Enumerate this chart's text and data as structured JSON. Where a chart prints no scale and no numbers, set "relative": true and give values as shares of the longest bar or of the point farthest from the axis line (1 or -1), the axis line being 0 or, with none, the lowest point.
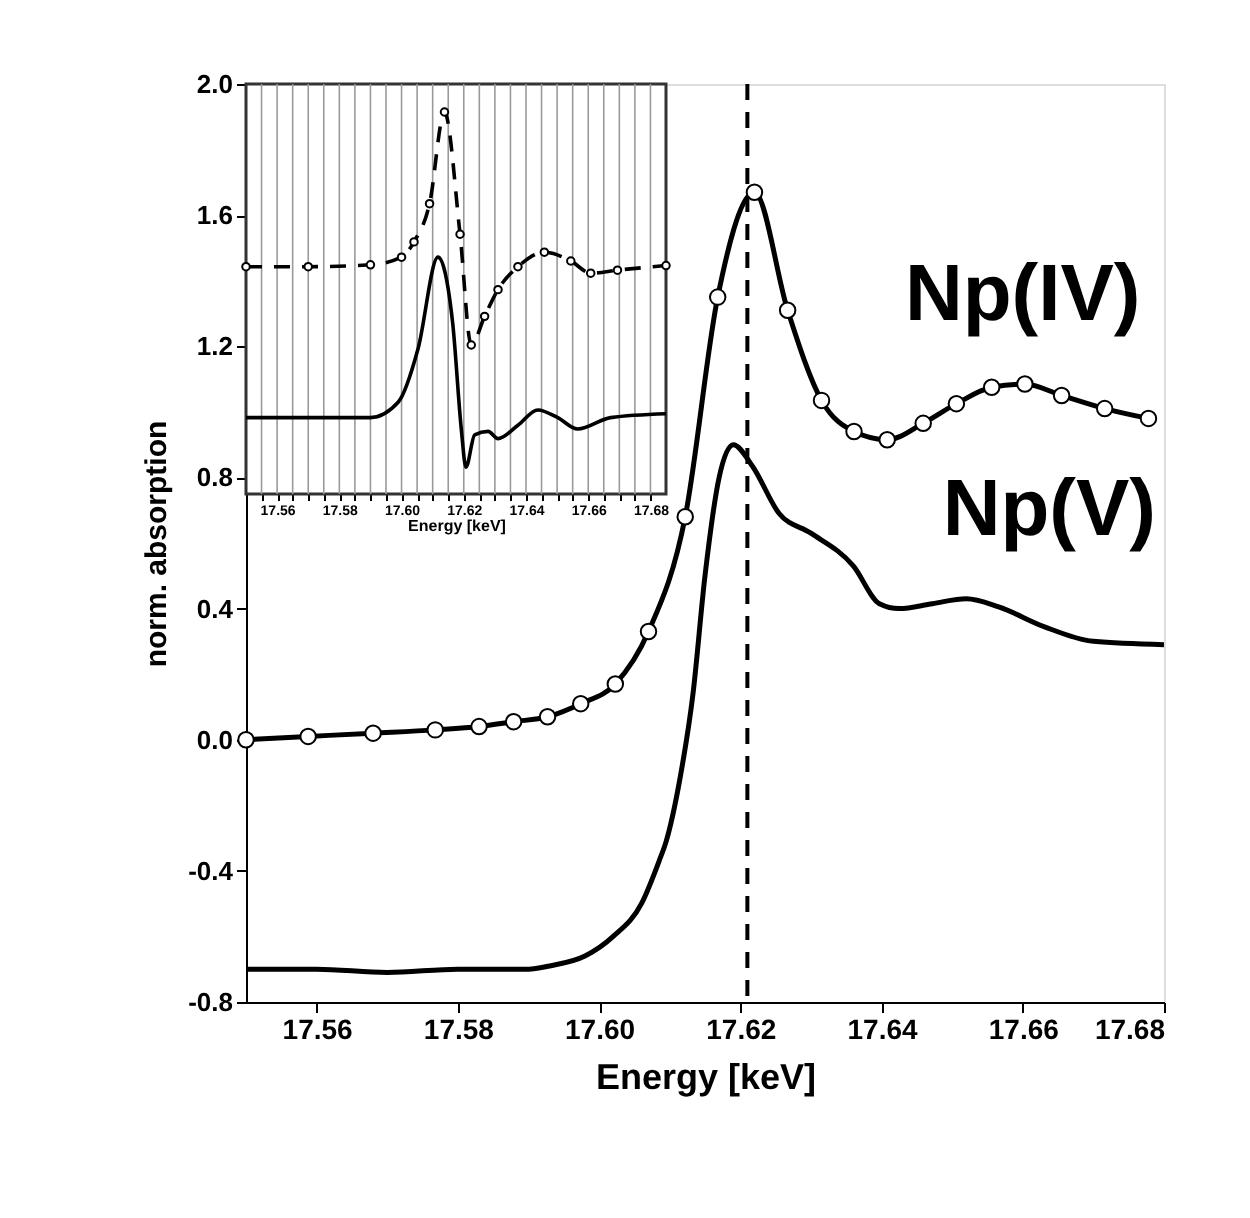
{
  "chart_data": [
    {
      "type": "line",
      "xlabel": "Energy [keV]",
      "ylabel": "norm. absorption",
      "xlim": [
        17.55,
        17.68
      ],
      "ylim": [
        -0.8,
        2.0
      ],
      "xticks": [
        17.56,
        17.58,
        {
          "value": 17.6,
          "label": "17.60"
        },
        17.62,
        17.64,
        17.66,
        17.68
      ],
      "yticks": [
        {
          "value": -0.8,
          "label": "-0.8"
        },
        {
          "value": -0.4,
          "label": "-0.4"
        },
        {
          "value": 0,
          "label": "0.0"
        },
        {
          "value": 0.4,
          "label": "0.4"
        },
        {
          "value": 0.8,
          "label": "0.8"
        },
        {
          "value": 1.2,
          "label": "1.2"
        },
        {
          "value": 1.6,
          "label": "1.6"
        },
        {
          "value": 2.0,
          "label": "2.0"
        }
      ],
      "grid": false,
      "series": [
        {
          "name": "Np(IV)",
          "color": "#000000",
          "marker": "circle",
          "line_style": "solid",
          "x": [
            17.55,
            17.5588,
            17.568,
            17.5768,
            17.583,
            17.5879,
            17.5927,
            17.5974,
            17.6023,
            17.607,
            17.6122,
            17.6168,
            17.622,
            17.6267,
            17.6315,
            17.6361,
            17.6408,
            17.6459,
            17.6506,
            17.6556,
            17.6603,
            17.6655,
            17.6716,
            17.6778
          ],
          "values": [
            0.0,
            0.01,
            0.02,
            0.03,
            0.04,
            0.055,
            0.07,
            0.11,
            0.17,
            0.33,
            0.68,
            1.35,
            1.67,
            1.31,
            1.035,
            0.94,
            0.915,
            0.965,
            1.025,
            1.075,
            1.085,
            1.05,
            1.01,
            0.98
          ]
        },
        {
          "name": "Np(V)",
          "color": "#000000",
          "marker": "none",
          "line_style": "solid",
          "x": [
            17.55,
            17.56,
            17.57,
            17.58,
            17.59,
            17.593,
            17.598,
            17.602,
            17.606,
            17.6085,
            17.6095,
            17.6114,
            17.6133,
            17.615,
            17.617,
            17.619,
            17.6217,
            17.6255,
            17.63,
            17.636,
            17.6397,
            17.6425,
            17.6472,
            17.652,
            17.6566,
            17.663,
            17.67,
            17.68
          ],
          "values": [
            -0.7,
            -0.7,
            -0.71,
            -0.7,
            -0.7,
            -0.69,
            -0.66,
            -0.6,
            -0.5,
            -0.37,
            -0.31,
            -0.125,
            0.14,
            0.5,
            0.8,
            0.9,
            0.835,
            0.69,
            0.63,
            0.53,
            0.415,
            0.4,
            0.415,
            0.43,
            0.405,
            0.345,
            0.3,
            0.29
          ]
        }
      ],
      "ref_lines": [
        {
          "axis": "x",
          "value": 17.621,
          "line_style": "dashed",
          "color": "#000000"
        }
      ]
    },
    {
      "type": "line",
      "relative": true,
      "xlabel": "Energy [keV]",
      "xlim": [
        17.55,
        17.685
      ],
      "xticks": [
        {
          "value": 17.555,
          "label": null
        },
        {
          "value": 17.56,
          "label": "17.56"
        },
        {
          "value": 17.565,
          "label": null
        },
        {
          "value": 17.57,
          "label": null
        },
        {
          "value": 17.575,
          "label": null
        },
        {
          "value": 17.58,
          "label": "17.58"
        },
        {
          "value": 17.585,
          "label": null
        },
        {
          "value": 17.59,
          "label": null
        },
        {
          "value": 17.595,
          "label": null
        },
        {
          "value": 17.6,
          "label": "17.60"
        },
        {
          "value": 17.605,
          "label": null
        },
        {
          "value": 17.61,
          "label": null
        },
        {
          "value": 17.615,
          "label": null
        },
        {
          "value": 17.62,
          "label": "17.62"
        },
        {
          "value": 17.625,
          "label": null
        },
        {
          "value": 17.63,
          "label": null
        },
        {
          "value": 17.635,
          "label": null
        },
        {
          "value": 17.64,
          "label": "17.64"
        },
        {
          "value": 17.645,
          "label": null
        },
        {
          "value": 17.65,
          "label": null
        },
        {
          "value": 17.655,
          "label": null
        },
        {
          "value": 17.66,
          "label": "17.66"
        },
        {
          "value": 17.665,
          "label": null
        },
        {
          "value": 17.67,
          "label": null
        },
        {
          "value": 17.675,
          "label": null
        },
        {
          "value": 17.68,
          "label": "17.68"
        }
      ],
      "grid": "x",
      "tick_labels": "x",
      "series": [
        {
          "color": "#000000",
          "marker": "circle",
          "line_style": "dashed",
          "x": [
            17.55,
            17.57,
            17.59,
            17.6,
            17.604,
            17.609,
            17.6138,
            17.6188,
            17.6224,
            17.6267,
            17.631,
            17.6374,
            17.6459,
            17.6544,
            17.6608,
            17.6694,
            17.685
          ],
          "values": [
            0.595,
            0.595,
            0.6,
            0.62,
            0.66,
            0.76,
            1.0,
            0.68,
            0.39,
            0.465,
            0.535,
            0.595,
            0.633,
            0.61,
            0.578,
            0.586,
            0.598
          ]
        },
        {
          "color": "#000000",
          "marker": "none",
          "line_style": "solid",
          "x": [
            17.55,
            17.57,
            17.59,
            17.5989,
            17.6053,
            17.6117,
            17.6164,
            17.6192,
            17.6207,
            17.6235,
            17.6278,
            17.631,
            17.6374,
            17.6438,
            17.6502,
            17.6566,
            17.6672,
            17.685
          ],
          "values": [
            0.2,
            0.2,
            0.2,
            0.24,
            0.38,
            0.62,
            0.45,
            0.17,
            0.07,
            0.155,
            0.164,
            0.145,
            0.18,
            0.22,
            0.2,
            0.17,
            0.2,
            0.21
          ]
        }
      ]
    }
  ]
}
